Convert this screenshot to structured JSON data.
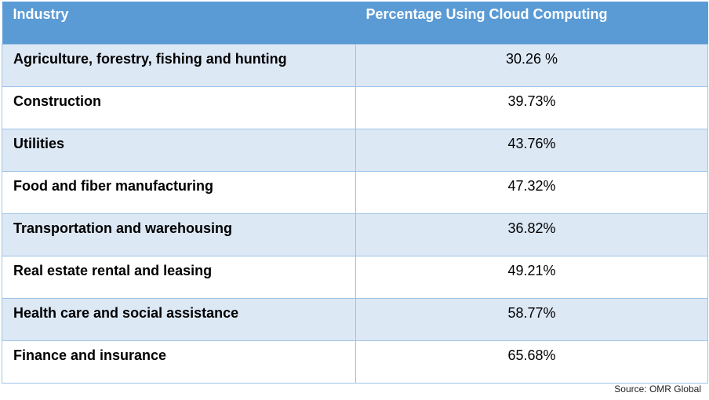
{
  "chart_data": {
    "type": "table",
    "columns": [
      "Industry",
      "Percentage Using Cloud Computing"
    ],
    "rows": [
      {
        "industry": "Agriculture, forestry, fishing and hunting",
        "value_label": "30.26 %",
        "value": 30.26
      },
      {
        "industry": "Construction",
        "value_label": "39.73%",
        "value": 39.73
      },
      {
        "industry": "Utilities",
        "value_label": "43.76%",
        "value": 43.76
      },
      {
        "industry": "Food and fiber manufacturing",
        "value_label": "47.32%",
        "value": 47.32
      },
      {
        "industry": "Transportation and warehousing",
        "value_label": "36.82%",
        "value": 36.82
      },
      {
        "industry": "Real estate rental and leasing",
        "value_label": "49.21%",
        "value": 49.21
      },
      {
        "industry": "Health care and social assistance",
        "value_label": "58.77%",
        "value": 58.77
      },
      {
        "industry": "Finance and insurance",
        "value_label": "65.68%",
        "value": 65.68
      }
    ],
    "source": "Source: OMR Global"
  },
  "colors": {
    "header_bg": "#5b9bd5",
    "band_bg": "#dde8f5",
    "border": "#9dc3e6"
  }
}
